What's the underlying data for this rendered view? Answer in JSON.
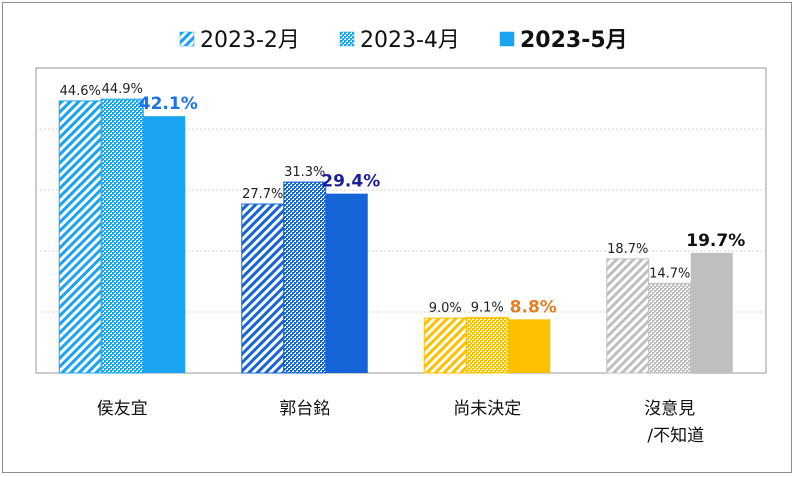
{
  "chart_data": {
    "type": "bar",
    "legend": [
      {
        "name": "2023-2月",
        "pattern": "hatch",
        "bold": false
      },
      {
        "name": "2023-4月",
        "pattern": "dots",
        "bold": false
      },
      {
        "name": "2023-5月",
        "pattern": "solid",
        "bold": true
      }
    ],
    "categories": [
      {
        "lines": [
          "侯友宜"
        ],
        "values": [
          44.6,
          44.9,
          42.1
        ],
        "labels": [
          "44.6%",
          "44.9%",
          "42.1%"
        ],
        "palette": "lightblue",
        "bold_color": "#1a73e8"
      },
      {
        "lines": [
          "郭台銘"
        ],
        "values": [
          27.7,
          31.3,
          29.4
        ],
        "labels": [
          "27.7%",
          "31.3%",
          "29.4%"
        ],
        "palette": "darkblue",
        "bold_color": "#1c1f9c"
      },
      {
        "lines": [
          "尚未決定"
        ],
        "values": [
          9.0,
          9.1,
          8.8
        ],
        "labels": [
          "9.0%",
          "9.1%",
          "8.8%"
        ],
        "palette": "gold",
        "bold_color": "#e67e22"
      },
      {
        "lines": [
          "沒意見",
          "/不知道"
        ],
        "values": [
          18.7,
          14.7,
          19.7
        ],
        "labels": [
          "18.7%",
          "14.7%",
          "19.7%"
        ],
        "palette": "gray",
        "bold_color": "#111111"
      }
    ],
    "ylim": [
      0,
      50
    ],
    "grid": true,
    "legend_placement": "top-center",
    "colors": {
      "lightblue": "#1aa3f0",
      "darkblue": "#1565d8",
      "gold": "#ffc000",
      "gray": "#bfbfbf"
    }
  }
}
